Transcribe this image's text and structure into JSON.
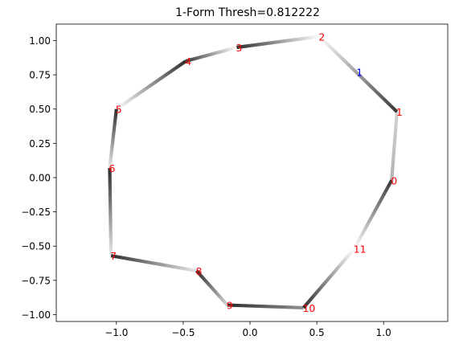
{
  "chart_data": {
    "type": "scatter",
    "title": "1-Form Thresh=0.812222",
    "xlabel": "",
    "ylabel": "",
    "xlim": [
      -1.45,
      1.48
    ],
    "ylim": [
      -1.05,
      1.12
    ],
    "xticks": [
      -1.0,
      -0.5,
      0.0,
      0.5,
      1.0
    ],
    "xtick_labels": [
      "−1.0",
      "−0.5",
      "0.0",
      "0.5",
      "1.0"
    ],
    "yticks": [
      -1.0,
      -0.75,
      -0.5,
      -0.25,
      0.0,
      0.25,
      0.5,
      0.75,
      1.0
    ],
    "ytick_labels": [
      "−1.00",
      "−0.75",
      "−0.50",
      "−0.25",
      "0.00",
      "0.25",
      "0.50",
      "0.75",
      "1.00"
    ],
    "grid": false,
    "colors": {
      "vertex_label": "#ff0000",
      "edge_label": "#0000ff",
      "edge_dark": "#222222",
      "edge_light": "#ffffff"
    },
    "vertices": [
      {
        "label": "0",
        "x": 1.06,
        "y": -0.02
      },
      {
        "label": "1",
        "x": 1.1,
        "y": 0.48
      },
      {
        "label": "2",
        "x": 0.52,
        "y": 1.03
      },
      {
        "label": "3",
        "x": -0.1,
        "y": 0.95
      },
      {
        "label": "4",
        "x": -0.48,
        "y": 0.85
      },
      {
        "label": "5",
        "x": -1.0,
        "y": 0.5
      },
      {
        "label": "6",
        "x": -1.05,
        "y": 0.07
      },
      {
        "label": "7",
        "x": -1.04,
        "y": -0.57
      },
      {
        "label": "8",
        "x": -0.4,
        "y": -0.68
      },
      {
        "label": "9",
        "x": -0.17,
        "y": -0.93
      },
      {
        "label": "10",
        "x": 0.4,
        "y": -0.95
      },
      {
        "label": "11",
        "x": 0.78,
        "y": -0.52
      }
    ],
    "edges": [
      {
        "from": 0,
        "to": 1,
        "w": [
          0.35,
          0.2
        ]
      },
      {
        "from": 1,
        "to": 2,
        "w": [
          0.9,
          0.0
        ]
      },
      {
        "from": 2,
        "to": 3,
        "w": [
          0.0,
          0.95
        ]
      },
      {
        "from": 3,
        "to": 4,
        "w": [
          0.0,
          0.9
        ]
      },
      {
        "from": 4,
        "to": 5,
        "w": [
          0.95,
          0.0
        ]
      },
      {
        "from": 5,
        "to": 6,
        "w": [
          0.95,
          0.1
        ]
      },
      {
        "from": 6,
        "to": 7,
        "w": [
          0.95,
          0.1
        ]
      },
      {
        "from": 7,
        "to": 8,
        "w": [
          0.95,
          0.1
        ]
      },
      {
        "from": 8,
        "to": 9,
        "w": [
          0.95,
          0.2
        ]
      },
      {
        "from": 9,
        "to": 10,
        "w": [
          0.95,
          0.5
        ]
      },
      {
        "from": 10,
        "to": 11,
        "w": [
          0.95,
          0.0
        ]
      },
      {
        "from": 11,
        "to": 0,
        "w": [
          0.0,
          0.9
        ]
      }
    ],
    "edge_labels": [
      {
        "label": "1",
        "x": 0.82,
        "y": 0.77
      }
    ]
  }
}
